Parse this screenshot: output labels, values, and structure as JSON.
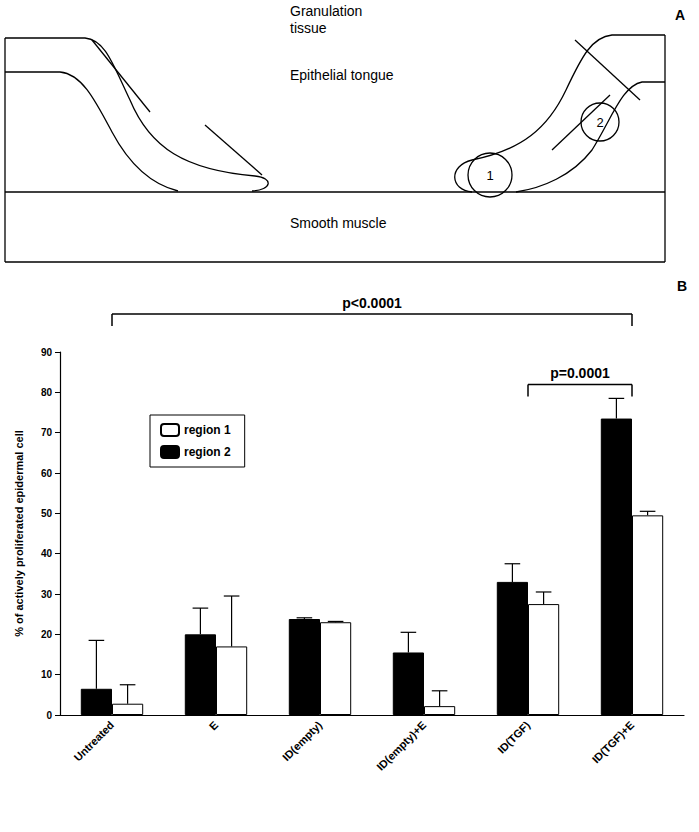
{
  "diagram": {
    "letter": "A",
    "labels": {
      "top": "Granulation tissue",
      "middle": "Epithelial tongue",
      "bottom": "Smooth muscle"
    },
    "regions": [
      "1",
      "2"
    ]
  },
  "chart_data": {
    "letter": "B",
    "type": "bar",
    "ylabel": "% of actively proliferated epidermal cell",
    "categories": [
      "Untreated",
      "E",
      "ID(empty)",
      "ID(empty)+E",
      "ID(TGF)",
      "ID(TGF)+E"
    ],
    "series": [
      {
        "name": "region 1",
        "color": "#ffffff",
        "values": [
          2.8,
          17,
          23,
          2.2,
          27.5,
          49.5
        ],
        "errors": [
          4.7,
          12.5,
          0.2,
          3.8,
          3,
          1
        ]
      },
      {
        "name": "region 2",
        "color": "#000000",
        "values": [
          6.5,
          20,
          23.8,
          15.5,
          33,
          73.5
        ],
        "errors": [
          12,
          6.5,
          0.3,
          5,
          4.5,
          5
        ]
      }
    ],
    "ylim": [
      0,
      90
    ],
    "yticks": [
      0,
      10,
      20,
      30,
      40,
      50,
      60,
      70,
      80,
      90
    ],
    "grid": false,
    "legend": "top-left",
    "annotations": [
      {
        "text": "p<0.0001",
        "from": "Untreated",
        "to": "ID(TGF)+E"
      },
      {
        "text": "p=0.0001",
        "from": "ID(TGF)",
        "to": "ID(TGF)+E"
      }
    ]
  }
}
